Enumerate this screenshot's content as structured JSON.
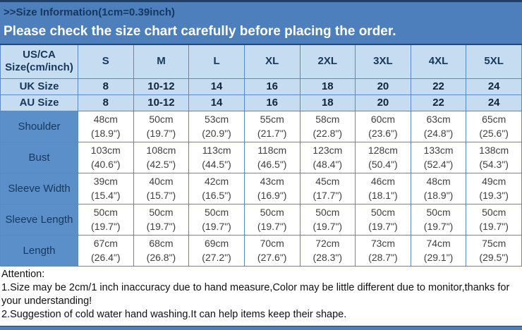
{
  "banner": {
    "title": ">>Size Information(1cm=0.39inch)",
    "notice": "Please check the size chart carefully before placing the order."
  },
  "colors": {
    "banner_bg": "#4d7fbc",
    "banner_title_text": "#17375d",
    "banner_notice_text": "#ffffff",
    "header_cell_bg": "#c6dcf1",
    "header_cell_text": "#17375d",
    "row_label_bg": "#5b8fc9",
    "data_cell_bg": "#ffffff",
    "data_cell_text": "#3f3f3f",
    "grid_border": "#5a8ac2",
    "top_edge_line": "#1f4066"
  },
  "size_table": {
    "columns": [
      "US/CA Size(cm/inch)",
      "S",
      "M",
      "L",
      "XL",
      "2XL",
      "3XL",
      "4XL",
      "5XL"
    ],
    "size_rows": [
      {
        "label": "UK Size",
        "values": [
          "8",
          "10-12",
          "14",
          "16",
          "18",
          "20",
          "22",
          "24"
        ]
      },
      {
        "label": "AU Size",
        "values": [
          "8",
          "10-12",
          "14",
          "16",
          "18",
          "20",
          "22",
          "24"
        ]
      }
    ],
    "measurement_rows": [
      {
        "label": "Shoulder",
        "cells": [
          [
            "48cm",
            "(18.9\")"
          ],
          [
            "50cm",
            "(19.7\")"
          ],
          [
            "53cm",
            "(20.9\")"
          ],
          [
            "55cm",
            "(21.7\")"
          ],
          [
            "58cm",
            "(22.8\")"
          ],
          [
            "60cm",
            "(23.6\")"
          ],
          [
            "63cm",
            "(24.8\")"
          ],
          [
            "65cm",
            "(25.6\")"
          ]
        ]
      },
      {
        "label": "Bust",
        "cells": [
          [
            "103cm",
            "(40.6\")"
          ],
          [
            "108cm",
            "(42.5\")"
          ],
          [
            "113cm",
            "(44.5\")"
          ],
          [
            "118cm",
            "(46.5\")"
          ],
          [
            "123cm",
            "(48.4\")"
          ],
          [
            "128cm",
            "(50.4\")"
          ],
          [
            "133cm",
            "(52.4\")"
          ],
          [
            "138cm",
            "(54.3\")"
          ]
        ]
      },
      {
        "label": "Sleeve Width",
        "cells": [
          [
            "39cm",
            "(15.4\")"
          ],
          [
            "40cm",
            "(15.7\")"
          ],
          [
            "42cm",
            "(16.5\")"
          ],
          [
            "43cm",
            "(16.9\")"
          ],
          [
            "45cm",
            "(17.7\")"
          ],
          [
            "46cm",
            "(18.1\")"
          ],
          [
            "48cm",
            "(18.9\")"
          ],
          [
            "49cm",
            "(19.3\")"
          ]
        ]
      },
      {
        "label": "Sleeve Length",
        "cells": [
          [
            "50cm",
            "(19.7\")"
          ],
          [
            "50cm",
            "(19.7\")"
          ],
          [
            "50cm",
            "(19.7\")"
          ],
          [
            "50cm",
            "(19.7\")"
          ],
          [
            "50cm",
            "(19.7\")"
          ],
          [
            "50cm",
            "(19.7\")"
          ],
          [
            "50cm",
            "(19.7\")"
          ],
          [
            "50cm",
            "(19.7\")"
          ]
        ]
      },
      {
        "label": "Length",
        "cells": [
          [
            "67cm",
            "(26.4\")"
          ],
          [
            "68cm",
            "(26.8\")"
          ],
          [
            "69cm",
            "(27.2\")"
          ],
          [
            "70cm",
            "(27.6\")"
          ],
          [
            "72cm",
            "(28.3\")"
          ],
          [
            "73cm",
            "(28.7\")"
          ],
          [
            "74cm",
            "(29.1\")"
          ],
          [
            "75cm",
            "(29.5\")"
          ]
        ]
      }
    ]
  },
  "attention": {
    "heading": "Attention:",
    "notes": [
      "1.Size may be 2cm/1 inch inaccuracy due to hand measure,Color may be little different due to monitor,thanks for your understanding!",
      "2.Suggestion of cold water hand washing.It can help items keep their shape."
    ]
  }
}
